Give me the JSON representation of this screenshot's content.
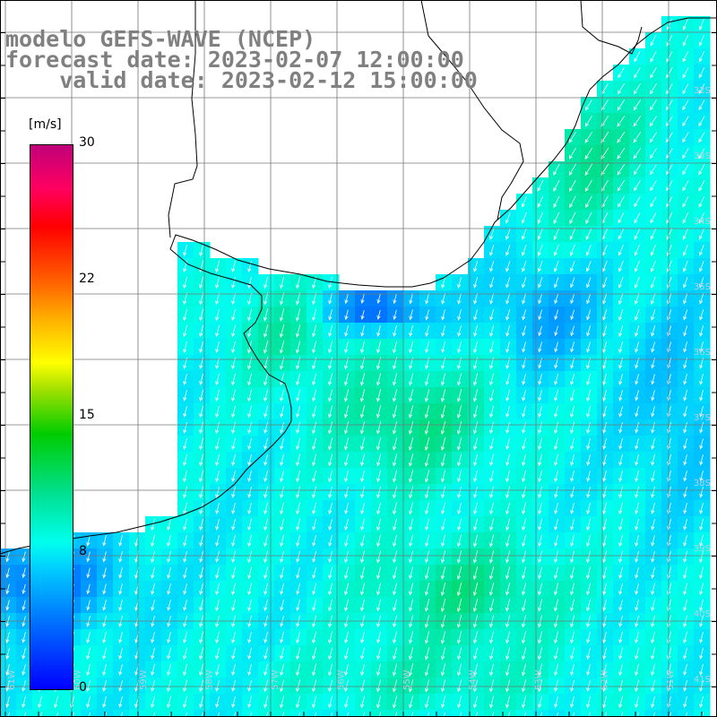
{
  "title": {
    "line1": "modelo GEFS-WAVE (NCEP)",
    "line2": "forecast date: 2023-02-07 12:00:00",
    "line3": "    valid date: 2023-02-12 15:00:00"
  },
  "colorbar": {
    "unit": "[m/s]",
    "ticks": [
      "30",
      "22",
      "15",
      "8",
      "0"
    ],
    "range": [
      0,
      30
    ]
  },
  "map": {
    "variable": "wind speed and direction",
    "land_color": "#ffffff",
    "grid": true,
    "lat_labels": [
      "32S",
      "33S",
      "34S",
      "35S",
      "36S",
      "37S",
      "38S",
      "39S",
      "40S",
      "41S"
    ],
    "lon_labels": [
      "61W",
      "60W",
      "59W",
      "58W",
      "57W",
      "56W",
      "55W",
      "54W",
      "53W",
      "52W",
      "51W"
    ]
  }
}
